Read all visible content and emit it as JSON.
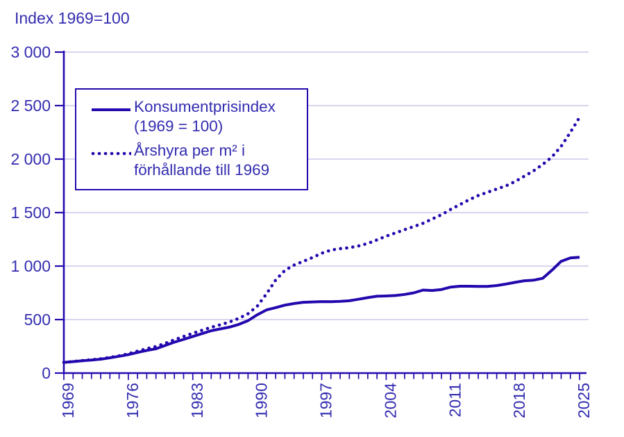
{
  "title": "Index 1969=100",
  "colors": {
    "line": "#2408ad",
    "text": "#332cb0",
    "gridline": "#cbc7ec",
    "background": "#ffffff"
  },
  "legend": {
    "items": [
      {
        "line1": "Konsumentprisindex",
        "line2": "(1969 = 100)",
        "style": "solid"
      },
      {
        "line1": "Årshyra per m² i",
        "line2": "förhållande till 1969",
        "style": "dotted"
      }
    ]
  },
  "chart_data": {
    "type": "line",
    "title": "Index 1969=100",
    "xlabel": "",
    "ylabel": "Index 1969=100",
    "xlim": [
      1969,
      2025
    ],
    "ylim": [
      0,
      3000
    ],
    "grid": "horizontal",
    "legend_position": "upper-left",
    "x": [
      1969,
      1970,
      1971,
      1972,
      1973,
      1974,
      1975,
      1976,
      1977,
      1978,
      1979,
      1980,
      1981,
      1982,
      1983,
      1984,
      1985,
      1986,
      1987,
      1988,
      1989,
      1990,
      1991,
      1992,
      1993,
      1994,
      1995,
      1996,
      1997,
      1998,
      1999,
      2000,
      2001,
      2002,
      2003,
      2004,
      2005,
      2006,
      2007,
      2008,
      2009,
      2010,
      2011,
      2012,
      2013,
      2014,
      2015,
      2016,
      2017,
      2018,
      2019,
      2020,
      2021,
      2022,
      2023,
      2024,
      2025
    ],
    "xticks_labeled": [
      1969,
      1976,
      1983,
      1990,
      1997,
      2004,
      2011,
      2018,
      2025
    ],
    "yticks": [
      0,
      500,
      1000,
      1500,
      2000,
      2500,
      3000
    ],
    "ytick_labels": [
      "0",
      "500",
      "1 000",
      "1 500",
      "2 000",
      "2 500",
      "3 000"
    ],
    "series": [
      {
        "name": "Konsumentprisindex (1969 = 100)",
        "style": "solid",
        "values": [
          100,
          107,
          115,
          122,
          130,
          143,
          157,
          173,
          193,
          212,
          227,
          258,
          289,
          315,
          342,
          369,
          396,
          413,
          430,
          455,
          490,
          545,
          590,
          612,
          635,
          650,
          662,
          665,
          668,
          667,
          670,
          676,
          690,
          705,
          718,
          721,
          725,
          735,
          750,
          776,
          772,
          781,
          804,
          812,
          812,
          810,
          810,
          818,
          832,
          848,
          863,
          868,
          886,
          962,
          1045,
          1076,
          1083
        ]
      },
      {
        "name": "Årshyra per m² i förhållande till 1969",
        "style": "dotted",
        "values": [
          100,
          108,
          117,
          125,
          134,
          147,
          162,
          180,
          205,
          228,
          248,
          278,
          312,
          342,
          372,
          400,
          428,
          452,
          478,
          512,
          555,
          625,
          740,
          870,
          960,
          1010,
          1045,
          1080,
          1120,
          1150,
          1163,
          1172,
          1188,
          1212,
          1245,
          1280,
          1310,
          1340,
          1370,
          1400,
          1440,
          1480,
          1530,
          1575,
          1620,
          1660,
          1690,
          1720,
          1750,
          1790,
          1840,
          1890,
          1950,
          2020,
          2120,
          2250,
          2390
        ]
      }
    ]
  }
}
